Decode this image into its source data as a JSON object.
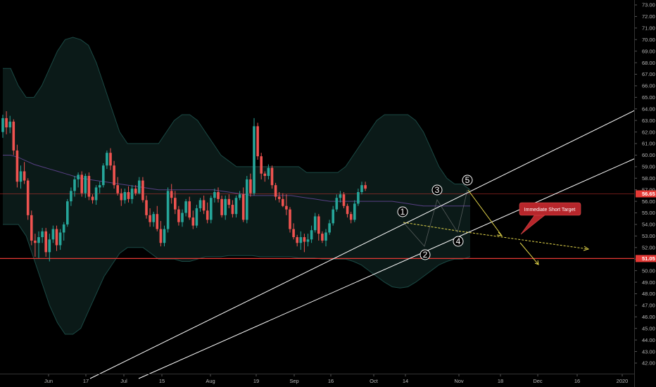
{
  "chart_data": {
    "type": "candlestick",
    "y_axis": {
      "min": 42.0,
      "max": 73.0,
      "step": 1.0,
      "decimals": 2
    },
    "x_ticks": [
      "Jun",
      "17",
      "Jul",
      "15",
      "Aug",
      "19",
      "Sep",
      "16",
      "Oct",
      "14",
      "Nov",
      "18",
      "Dec",
      "16",
      "2020"
    ],
    "price_tags": [
      {
        "value": 56.65,
        "color": "#e53935"
      },
      {
        "value": 51.05,
        "color": "#e53935"
      }
    ],
    "horizontal_lines": [
      {
        "value": 56.65,
        "color": "#e53935"
      },
      {
        "value": 51.05,
        "color": "#e53935"
      }
    ],
    "colors": {
      "up": "#26a69a",
      "down": "#ef5350",
      "band": "#1b4a45",
      "channel": "#ffffff",
      "projection": "#e6d84b"
    },
    "wave_labels": [
      "1",
      "2",
      "3",
      "4",
      "5"
    ],
    "annotation": "Immediate Short Target",
    "bands": {
      "upper": [
        67.5,
        67.5,
        66,
        65,
        65,
        66,
        67.5,
        69,
        70,
        70.2,
        70,
        69.5,
        68,
        66,
        64,
        62,
        61,
        61,
        61,
        61,
        61,
        62,
        63,
        63.5,
        63.5,
        63,
        62,
        61,
        60,
        59.5,
        59,
        59,
        59,
        59,
        59,
        59,
        59,
        59,
        59,
        58.5,
        58.5,
        58.5,
        58.5,
        58.5,
        59,
        60,
        61,
        62,
        63,
        63.5,
        63.5,
        63.5,
        63.5,
        63,
        62,
        60.5,
        59,
        58,
        57.5,
        57.5,
        57
      ],
      "middle": [
        60,
        60,
        59.8,
        59.5,
        59.2,
        59,
        58.8,
        58.6,
        58.4,
        58.2,
        58,
        57.9,
        57.8,
        57.7,
        57.6,
        57.5,
        57.4,
        57.3,
        57.2,
        57.1,
        57,
        57,
        57,
        57,
        57,
        57,
        57,
        57,
        56.9,
        56.8,
        56.7,
        56.6,
        56.5,
        56.5,
        56.5,
        56.5,
        56.5,
        56.5,
        56.4,
        56.3,
        56.2,
        56.1,
        56,
        56,
        56,
        56,
        56,
        56,
        56,
        56,
        56,
        55.9,
        55.8,
        55.7,
        55.6,
        55.6,
        55.6,
        55.6,
        55.6,
        55.6,
        55.6
      ],
      "lower": [
        54,
        54,
        54,
        53,
        51,
        49,
        47,
        45.5,
        44.5,
        44.5,
        45,
        46.5,
        48,
        49.5,
        50.5,
        51.5,
        52,
        52,
        52,
        51.5,
        51,
        51,
        51,
        50.8,
        50.8,
        51,
        51.2,
        51.2,
        51.2,
        51.3,
        51.3,
        51.3,
        51.3,
        51.2,
        51.2,
        51.2,
        51.2,
        51.2,
        51.1,
        51.1,
        51.1,
        51,
        51,
        51,
        51,
        50.8,
        50.5,
        50,
        49.5,
        49,
        48.6,
        48.5,
        48.6,
        49,
        49.5,
        50,
        50.5,
        50.8,
        51,
        51,
        51.2
      ]
    },
    "candles": [
      [
        62,
        63.5,
        61.5,
        63.2
      ],
      [
        63.2,
        63.8,
        61.8,
        62.4
      ],
      [
        62.4,
        63.4,
        61.9,
        62.9
      ],
      [
        62.9,
        63.1,
        60,
        60.4
      ],
      [
        60.4,
        60.9,
        57.2,
        57.7
      ],
      [
        57.7,
        59.1,
        57.1,
        58.6
      ],
      [
        58.6,
        59.4,
        57.5,
        57.8
      ],
      [
        57.8,
        58,
        54.4,
        54.8
      ],
      [
        54.8,
        55.2,
        52.2,
        52.6
      ],
      [
        52.6,
        53.2,
        51.2,
        52.4
      ],
      [
        52.4,
        53.4,
        51.1,
        52.9
      ],
      [
        52.9,
        53.7,
        52.4,
        53.4
      ],
      [
        53.4,
        53.7,
        51.2,
        51.6
      ],
      [
        51.6,
        53.2,
        50.8,
        52.7
      ],
      [
        52.7,
        53.9,
        52.4,
        53.6
      ],
      [
        53.6,
        53.9,
        51.7,
        52.2
      ],
      [
        52.2,
        53.6,
        51.8,
        53.3
      ],
      [
        53.3,
        54.2,
        52.6,
        54
      ],
      [
        54,
        56.2,
        53.8,
        56
      ],
      [
        56,
        57.2,
        55.6,
        56.9
      ],
      [
        56.9,
        58.2,
        56.4,
        57.9
      ],
      [
        57.9,
        58.5,
        57.2,
        58.3
      ],
      [
        58.3,
        58.6,
        56.4,
        56.7
      ],
      [
        56.7,
        58.4,
        56.3,
        58.2
      ],
      [
        58.2,
        58.5,
        56.1,
        56.4
      ],
      [
        56.4,
        56.6,
        55.8,
        56.1
      ],
      [
        56.1,
        57.4,
        55.7,
        57.2
      ],
      [
        57.2,
        57.7,
        56.7,
        57.4
      ],
      [
        57.4,
        59.3,
        57.2,
        59.1
      ],
      [
        59.1,
        60.4,
        58.8,
        60.2
      ],
      [
        60.2,
        60.6,
        58.7,
        59.1
      ],
      [
        59.1,
        59.5,
        57.1,
        57.4
      ],
      [
        57.4,
        58.1,
        56.5,
        56.7
      ],
      [
        56.7,
        57.1,
        55.6,
        56.1
      ],
      [
        56.1,
        57.1,
        55.8,
        56.8
      ],
      [
        56.8,
        57.3,
        55.9,
        56.2
      ],
      [
        56.2,
        57.4,
        55.8,
        57.1
      ],
      [
        57.1,
        57.4,
        56.5,
        56.7
      ],
      [
        56.7,
        58.1,
        56.6,
        57.8
      ],
      [
        57.8,
        58.1,
        55.9,
        56.1
      ],
      [
        56.1,
        56.5,
        54.5,
        54.8
      ],
      [
        54.8,
        55.4,
        53.8,
        54.2
      ],
      [
        54.2,
        55.1,
        53.8,
        54.9
      ],
      [
        54.9,
        55.6,
        53.4,
        53.6
      ],
      [
        53.6,
        54.3,
        52.1,
        52.4
      ],
      [
        52.4,
        53.9,
        52.1,
        53.6
      ],
      [
        53.6,
        57.2,
        53.3,
        56.9
      ],
      [
        56.9,
        57.5,
        55.8,
        56.3
      ],
      [
        56.3,
        56.9,
        54.9,
        55.3
      ],
      [
        55.3,
        55.6,
        53.9,
        54.2
      ],
      [
        54.2,
        55.3,
        53.8,
        55
      ],
      [
        55,
        56.2,
        54.7,
        56
      ],
      [
        56,
        56.4,
        54.4,
        54.6
      ],
      [
        54.6,
        55.2,
        53.6,
        53.9
      ],
      [
        53.9,
        55.7,
        53.7,
        55.4
      ],
      [
        55.4,
        56.3,
        55.1,
        56.1
      ],
      [
        56.1,
        56.5,
        54.9,
        55.2
      ],
      [
        55.2,
        55.9,
        54.1,
        54.4
      ],
      [
        54.4,
        56.5,
        54.1,
        56.3
      ],
      [
        56.3,
        57.1,
        55.9,
        56.8
      ],
      [
        56.8,
        57.2,
        55.9,
        56.2
      ],
      [
        56.2,
        56.5,
        54.6,
        54.8
      ],
      [
        54.8,
        56.5,
        54.4,
        56.2
      ],
      [
        56.2,
        56.6,
        55.4,
        55.7
      ],
      [
        55.7,
        56.1,
        54.6,
        54.9
      ],
      [
        54.9,
        56.5,
        54.6,
        56.3
      ],
      [
        56.3,
        56.9,
        56.1,
        56.6
      ],
      [
        56.6,
        57.2,
        54.2,
        54.4
      ],
      [
        54.4,
        58.2,
        54.1,
        57.9
      ],
      [
        57.9,
        58.4,
        56.4,
        56.7
      ],
      [
        56.7,
        63.2,
        56.5,
        62.5
      ],
      [
        62.5,
        62.8,
        59.6,
        59.9
      ],
      [
        59.9,
        60.2,
        57.9,
        58.4
      ],
      [
        58.4,
        58.6,
        57.7,
        58.2
      ],
      [
        58.2,
        59.2,
        57.9,
        58.9
      ],
      [
        58.9,
        59.1,
        57.1,
        57.4
      ],
      [
        57.4,
        57.6,
        56.1,
        56.4
      ],
      [
        56.4,
        56.8,
        55.9,
        56.2
      ],
      [
        56.2,
        56.7,
        55.5,
        55.6
      ],
      [
        55.6,
        56.6,
        54.8,
        55.3
      ],
      [
        55.3,
        55.5,
        53.3,
        53.6
      ],
      [
        53.6,
        54.1,
        52.7,
        52.9
      ],
      [
        52.9,
        53.1,
        52.1,
        52.4
      ],
      [
        52.4,
        53.4,
        51.8,
        52.9
      ],
      [
        52.9,
        53.2,
        51.6,
        52.5
      ],
      [
        52.5,
        53.2,
        52.1,
        52.7
      ],
      [
        52.7,
        53.9,
        52.4,
        53.5
      ],
      [
        53.5,
        55,
        53.3,
        54.7
      ],
      [
        54.7,
        54.9,
        52.6,
        53.2
      ],
      [
        53.2,
        53.4,
        52.4,
        52.6
      ],
      [
        52.6,
        53.6,
        52.1,
        53.3
      ],
      [
        53.3,
        54.4,
        53.1,
        54.1
      ],
      [
        54.1,
        55.6,
        53.9,
        55.3
      ],
      [
        55.3,
        56.6,
        55.1,
        56.3
      ],
      [
        56.3,
        56.9,
        55.9,
        56.6
      ],
      [
        56.6,
        56.8,
        55.4,
        55.6
      ],
      [
        55.6,
        55.8,
        54.6,
        54.9
      ],
      [
        54.9,
        55.1,
        54.1,
        54.4
      ],
      [
        54.4,
        56.1,
        54.2,
        55.8
      ],
      [
        55.8,
        57.1,
        55.6,
        56.8
      ],
      [
        56.8,
        57.7,
        56.6,
        57.4
      ],
      [
        57.4,
        57.7,
        56.9,
        57.1
      ]
    ]
  }
}
